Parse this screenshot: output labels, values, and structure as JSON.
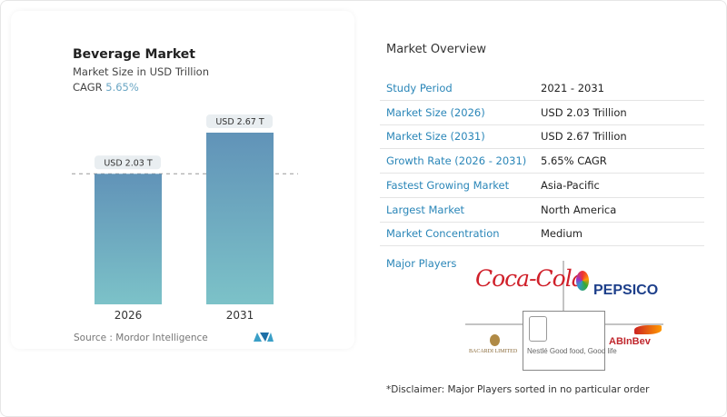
{
  "chart_data": {
    "type": "bar",
    "title": "Beverage Market",
    "subtitle": "Market Size in USD Trillion",
    "cagr_label": "CAGR",
    "cagr_value": "5.65%",
    "categories": [
      "2026",
      "2031"
    ],
    "values": [
      2.03,
      2.67
    ],
    "data_labels": [
      "USD 2.03 T",
      "USD 2.67 T"
    ],
    "ylim": [
      0,
      2.67
    ],
    "grid": false,
    "colors": {
      "bar_top": "#6193b8",
      "bar_bottom": "#7cc2c8"
    }
  },
  "source": "Source :  Mordor Intelligence",
  "overview": {
    "title": "Market Overview",
    "rows": [
      {
        "label": "Study Period",
        "value": "2021 - 2031"
      },
      {
        "label": "Market Size (2026)",
        "value": "USD 2.03 Trillion"
      },
      {
        "label": "Market Size (2031)",
        "value": "USD 2.67 Trillion"
      },
      {
        "label": "Growth Rate (2026 - 2031)",
        "value": "5.65% CAGR"
      },
      {
        "label": "Fastest Growing Market",
        "value": "Asia-Pacific"
      },
      {
        "label": "Largest Market",
        "value": "North America"
      },
      {
        "label": "Market Concentration",
        "value": "Medium"
      }
    ],
    "major_players_label": "Major Players",
    "players": [
      "Coca-Cola",
      "PEPSICO",
      "BACARDI LIMITED",
      "Nestlé Good food, Good life",
      "ABInBev"
    ],
    "disclaimer": "*Disclaimer: Major Players sorted in no particular order"
  }
}
